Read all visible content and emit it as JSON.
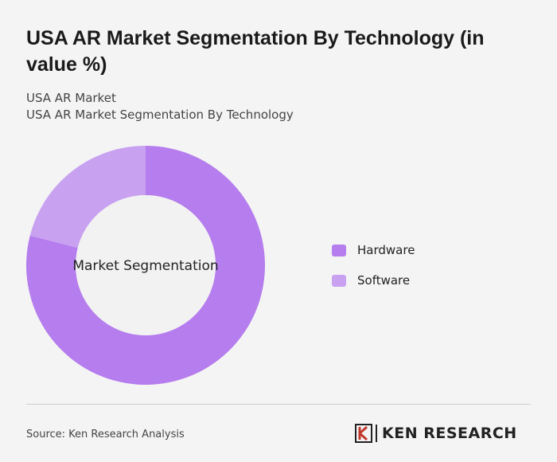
{
  "chart_data": {
    "type": "donut",
    "title": "USA AR Market Segmentation By Technology (in value %)",
    "subtitles": [
      "USA AR Market",
      "USA AR Market Segmentation By Technology"
    ],
    "center_label": "Market Segmentation",
    "categories": [
      "Hardware",
      "Software"
    ],
    "values": [
      79,
      21
    ],
    "colors": [
      "#b57ded",
      "#c9a1f1"
    ]
  },
  "footer": {
    "source": "Source: Ken Research Analysis",
    "logo": "KEN RESEARCH"
  }
}
